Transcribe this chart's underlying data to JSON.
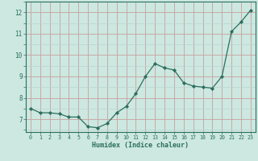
{
  "x": [
    0,
    1,
    2,
    3,
    4,
    5,
    6,
    7,
    8,
    9,
    10,
    11,
    12,
    13,
    14,
    15,
    16,
    17,
    18,
    19,
    20,
    21,
    22,
    23
  ],
  "y": [
    7.5,
    7.3,
    7.3,
    7.25,
    7.1,
    7.1,
    6.65,
    6.6,
    6.8,
    7.3,
    7.6,
    8.2,
    9.0,
    9.6,
    9.4,
    9.3,
    8.7,
    8.55,
    8.5,
    8.45,
    9.0,
    11.1,
    11.55,
    12.1
  ],
  "line_color": "#2d6e5e",
  "marker": "D",
  "marker_size": 2.2,
  "xlabel": "Humidex (Indice chaleur)",
  "ylim": [
    6.4,
    12.5
  ],
  "xlim": [
    -0.5,
    23.5
  ],
  "yticks": [
    7,
    8,
    9,
    10,
    11,
    12
  ],
  "xticks": [
    0,
    1,
    2,
    3,
    4,
    5,
    6,
    7,
    8,
    9,
    10,
    11,
    12,
    13,
    14,
    15,
    16,
    17,
    18,
    19,
    20,
    21,
    22,
    23
  ],
  "bg_color": "#cce8e0",
  "grid_color_major": "#c8a0a0",
  "grid_color_minor": "#b8d4d0"
}
